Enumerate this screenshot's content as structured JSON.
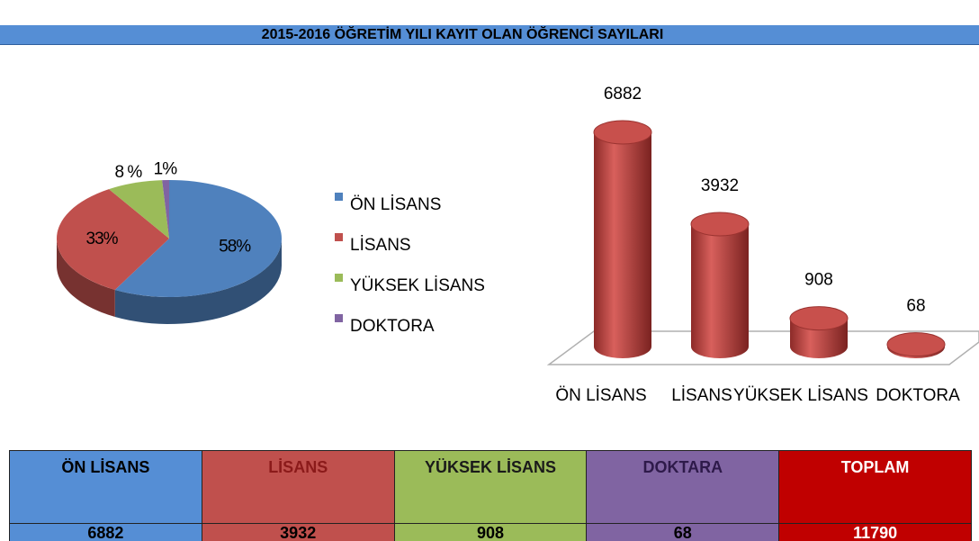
{
  "title": "2015-2016 ÖĞRETİM YILI KAYIT OLAN ÖĞRENCİ SAYILARI",
  "chart_data": [
    {
      "type": "pie",
      "categories": [
        "ÖN LİSANS",
        "LİSANS",
        "YÜKSEK LİSANS",
        "DOKTORA"
      ],
      "values": [
        58,
        33,
        8,
        1
      ],
      "value_labels": [
        "58%",
        "33%",
        "8 %",
        "1%"
      ],
      "colors": [
        "#4f81bd",
        "#c0504d",
        "#9bbb59",
        "#8064a2"
      ],
      "legend": "right"
    },
    {
      "type": "bar",
      "categories": [
        "ÖN LİSANS",
        "LİSANS",
        "YÜKSEK LİSANS",
        "DOKTORA"
      ],
      "values": [
        6882,
        3932,
        908,
        68
      ],
      "color": "#c0504d"
    }
  ],
  "table": {
    "header": [
      "ÖN LİSANS",
      "LİSANS",
      "YÜKSEK LİSANS",
      "DOKTARA",
      "TOPLAM"
    ],
    "rows": [
      [
        6882,
        3932,
        908,
        68,
        11790
      ]
    ]
  }
}
